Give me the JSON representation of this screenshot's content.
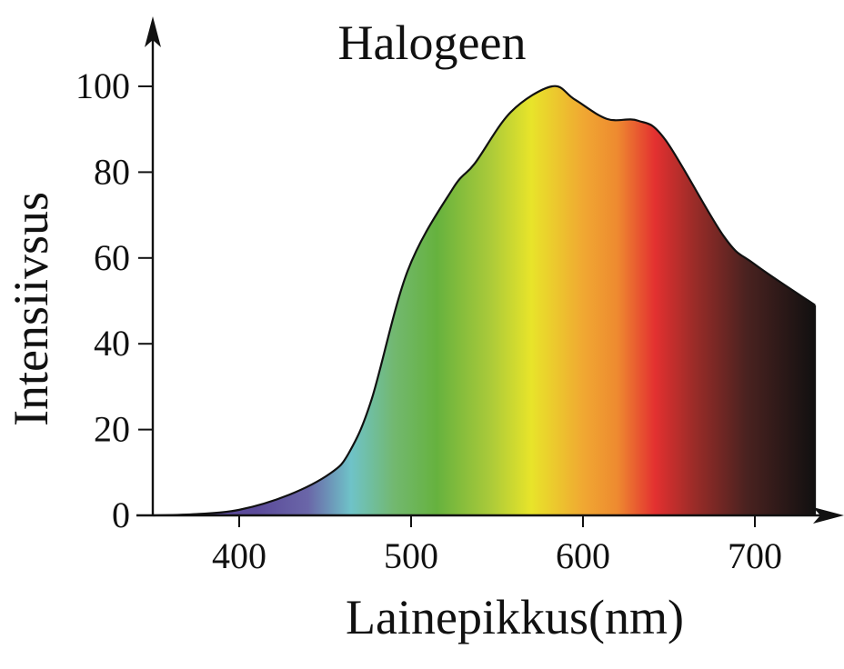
{
  "chart_data": {
    "type": "area",
    "title": "Halogeen",
    "xlabel": "Lainepikkus(nm)",
    "ylabel": "Intensiivsus",
    "xlim": [
      350,
      735
    ],
    "ylim": [
      0,
      100
    ],
    "xticks": [
      400,
      500,
      600,
      700
    ],
    "yticks": [
      0,
      20,
      40,
      60,
      80,
      100
    ],
    "grid": false,
    "fill": "visible-spectrum gradient",
    "spectrum_colors": [
      {
        "nm": 410,
        "color": "#5b4a9a"
      },
      {
        "nm": 440,
        "color": "#6a66a8"
      },
      {
        "nm": 465,
        "color": "#6fc3c8"
      },
      {
        "nm": 490,
        "color": "#72b870"
      },
      {
        "nm": 515,
        "color": "#66b23e"
      },
      {
        "nm": 545,
        "color": "#a8c93a"
      },
      {
        "nm": 570,
        "color": "#e8e42a"
      },
      {
        "nm": 600,
        "color": "#f0a832"
      },
      {
        "nm": 620,
        "color": "#ee8a30"
      },
      {
        "nm": 642,
        "color": "#e33030"
      },
      {
        "nm": 665,
        "color": "#9a2c28"
      },
      {
        "nm": 695,
        "color": "#4a2220"
      },
      {
        "nm": 735,
        "color": "#111010"
      }
    ],
    "x": [
      350,
      375,
      400,
      429,
      453,
      464,
      477,
      498,
      524,
      537,
      558,
      582,
      595,
      614,
      632,
      648,
      682,
      700,
      735
    ],
    "y": [
      0,
      0.3,
      1.3,
      4.8,
      9.8,
      14.7,
      27,
      57,
      76,
      82,
      94,
      100,
      97,
      92.4,
      92,
      87.5,
      65,
      58.5,
      49
    ]
  }
}
